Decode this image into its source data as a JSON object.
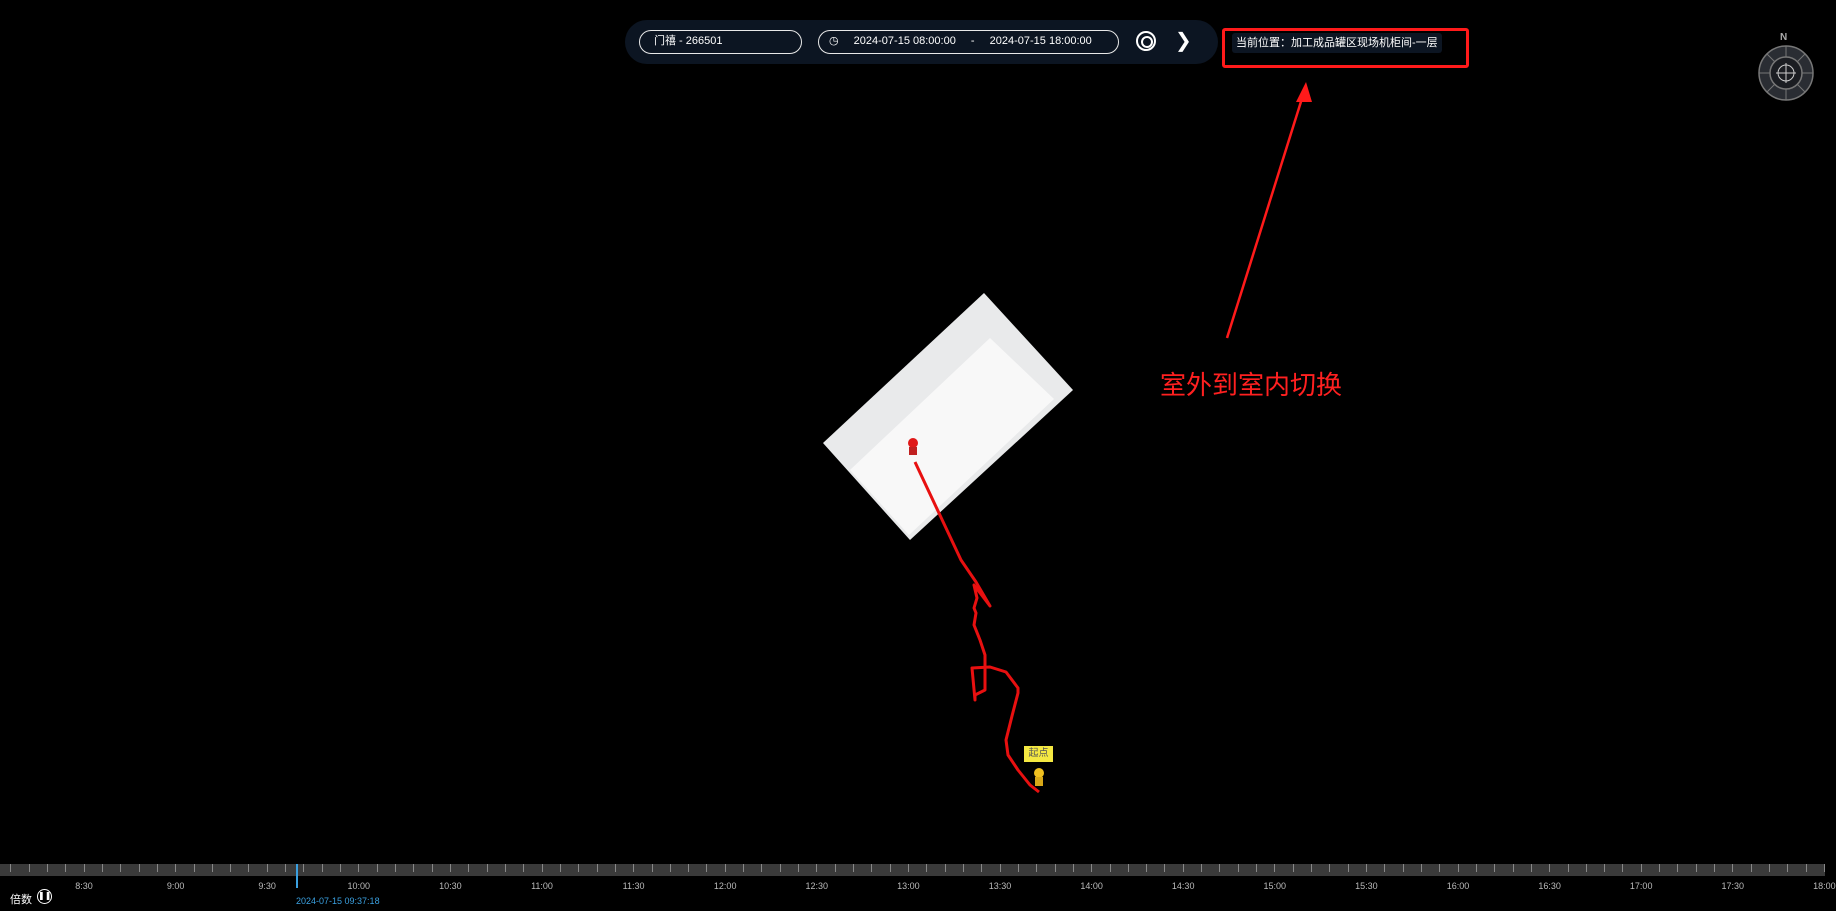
{
  "toolbar": {
    "device": "门禧 - 266501",
    "start_time": "2024-07-15 08:00:00",
    "separator": "-",
    "end_time": "2024-07-15 18:00:00",
    "search_icon": "search-icon",
    "next_icon": "chevron-right-icon"
  },
  "location": {
    "label": "当前位置：加工成品罐区现场机柜间-一层"
  },
  "annotation": {
    "text": "室外到室内切换",
    "color": "#ff2020"
  },
  "compass": {
    "north": "N"
  },
  "map": {
    "start_label": "起点",
    "track_color": "#e81010"
  },
  "timeline": {
    "labels": [
      "8:30",
      "9:00",
      "9:30",
      "10:00",
      "10:30",
      "11:00",
      "11:30",
      "12:00",
      "12:30",
      "13:00",
      "13:30",
      "14:00",
      "14:30",
      "15:00",
      "15:30",
      "16:00",
      "16:30",
      "17:00",
      "17:30",
      "18:00"
    ],
    "current_time": "2024-07-15 09:37:18",
    "speed_label": "倍数",
    "pause_icon": "pause-icon"
  }
}
